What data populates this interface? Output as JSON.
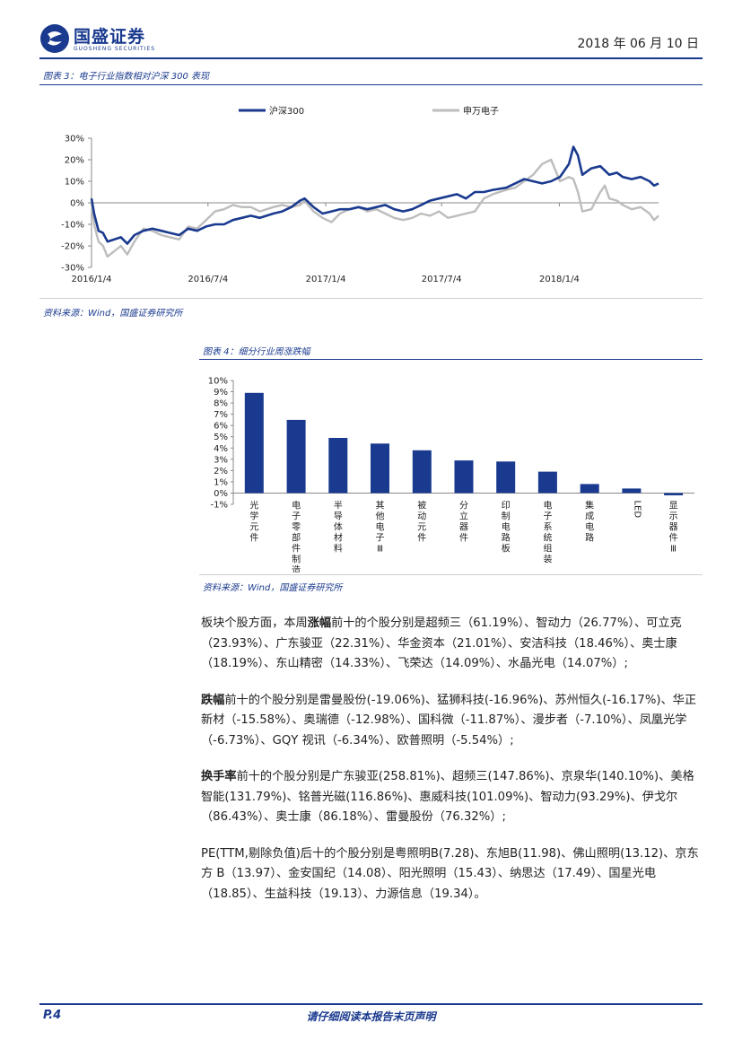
{
  "header": {
    "logo_text": "国盛证券",
    "logo_sub": "GUOSHENG SECURITIES",
    "date": "2018 年 06 月 10 日"
  },
  "figure3": {
    "caption": "图表 3：电子行业指数相对沪深 300 表现",
    "source": "资料来源：Wind，国盛证券研究所"
  },
  "figure4": {
    "caption": "图表 4：细分行业周涨跌幅",
    "source": "资料来源：Wind，国盛证券研究所"
  },
  "chart_data": [
    {
      "type": "line",
      "legend_position": "top",
      "ylim": [
        -0.3,
        0.3
      ],
      "yticks": [
        0.3,
        0.2,
        0.1,
        0.0,
        -0.1,
        -0.2,
        -0.3
      ],
      "ytick_labels": [
        "30%",
        "20%",
        "10%",
        "0%",
        "-10%",
        "-20%",
        "-30%"
      ],
      "xticks": [
        "2016/1/4",
        "2016/7/4",
        "2017/1/4",
        "2017/7/4",
        "2018/1/4"
      ],
      "xlim": [
        "2016-01-04",
        "2018-06-08"
      ],
      "series": [
        {
          "name": "沪深300",
          "color": "#1a3a8f",
          "points": [
            [
              "2016-01-04",
              0.02
            ],
            [
              "2016-01-08",
              -0.05
            ],
            [
              "2016-01-15",
              -0.13
            ],
            [
              "2016-01-22",
              -0.14
            ],
            [
              "2016-01-29",
              -0.18
            ],
            [
              "2016-02-19",
              -0.16
            ],
            [
              "2016-02-29",
              -0.19
            ],
            [
              "2016-03-11",
              -0.15
            ],
            [
              "2016-03-25",
              -0.13
            ],
            [
              "2016-04-08",
              -0.12
            ],
            [
              "2016-04-22",
              -0.13
            ],
            [
              "2016-05-06",
              -0.14
            ],
            [
              "2016-05-20",
              -0.15
            ],
            [
              "2016-06-03",
              -0.12
            ],
            [
              "2016-06-17",
              -0.13
            ],
            [
              "2016-07-01",
              -0.11
            ],
            [
              "2016-07-15",
              -0.1
            ],
            [
              "2016-07-29",
              -0.1
            ],
            [
              "2016-08-12",
              -0.08
            ],
            [
              "2016-08-26",
              -0.07
            ],
            [
              "2016-09-09",
              -0.06
            ],
            [
              "2016-09-23",
              -0.07
            ],
            [
              "2016-10-14",
              -0.05
            ],
            [
              "2016-10-28",
              -0.04
            ],
            [
              "2016-11-11",
              -0.02
            ],
            [
              "2016-11-25",
              0.01
            ],
            [
              "2016-12-02",
              0.02
            ],
            [
              "2016-12-16",
              -0.02
            ],
            [
              "2016-12-30",
              -0.05
            ],
            [
              "2017-01-13",
              -0.04
            ],
            [
              "2017-01-26",
              -0.03
            ],
            [
              "2017-02-10",
              -0.03
            ],
            [
              "2017-02-24",
              -0.02
            ],
            [
              "2017-03-10",
              -0.03
            ],
            [
              "2017-03-24",
              -0.02
            ],
            [
              "2017-04-07",
              -0.01
            ],
            [
              "2017-04-21",
              -0.03
            ],
            [
              "2017-05-05",
              -0.04
            ],
            [
              "2017-05-19",
              -0.03
            ],
            [
              "2017-06-02",
              -0.01
            ],
            [
              "2017-06-16",
              0.01
            ],
            [
              "2017-06-30",
              0.02
            ],
            [
              "2017-07-14",
              0.03
            ],
            [
              "2017-07-28",
              0.04
            ],
            [
              "2017-08-11",
              0.02
            ],
            [
              "2017-08-25",
              0.05
            ],
            [
              "2017-09-08",
              0.05
            ],
            [
              "2017-09-22",
              0.06
            ],
            [
              "2017-10-13",
              0.07
            ],
            [
              "2017-10-27",
              0.09
            ],
            [
              "2017-11-10",
              0.11
            ],
            [
              "2017-11-24",
              0.1
            ],
            [
              "2017-12-08",
              0.09
            ],
            [
              "2017-12-22",
              0.1
            ],
            [
              "2018-01-05",
              0.12
            ],
            [
              "2018-01-19",
              0.18
            ],
            [
              "2018-01-26",
              0.26
            ],
            [
              "2018-02-02",
              0.22
            ],
            [
              "2018-02-09",
              0.13
            ],
            [
              "2018-02-23",
              0.16
            ],
            [
              "2018-03-09",
              0.17
            ],
            [
              "2018-03-16",
              0.15
            ],
            [
              "2018-03-23",
              0.13
            ],
            [
              "2018-04-04",
              0.14
            ],
            [
              "2018-04-13",
              0.12
            ],
            [
              "2018-04-27",
              0.11
            ],
            [
              "2018-05-11",
              0.12
            ],
            [
              "2018-05-25",
              0.1
            ],
            [
              "2018-06-01",
              0.08
            ],
            [
              "2018-06-08",
              0.09
            ]
          ]
        },
        {
          "name": "申万电子",
          "color": "#bdbdbd",
          "points": [
            [
              "2016-01-04",
              0.0
            ],
            [
              "2016-01-08",
              -0.1
            ],
            [
              "2016-01-15",
              -0.18
            ],
            [
              "2016-01-22",
              -0.2
            ],
            [
              "2016-01-29",
              -0.25
            ],
            [
              "2016-02-19",
              -0.2
            ],
            [
              "2016-02-29",
              -0.24
            ],
            [
              "2016-03-11",
              -0.18
            ],
            [
              "2016-03-25",
              -0.12
            ],
            [
              "2016-04-08",
              -0.13
            ],
            [
              "2016-04-22",
              -0.15
            ],
            [
              "2016-05-06",
              -0.16
            ],
            [
              "2016-05-20",
              -0.17
            ],
            [
              "2016-06-03",
              -0.11
            ],
            [
              "2016-06-17",
              -0.12
            ],
            [
              "2016-07-01",
              -0.08
            ],
            [
              "2016-07-15",
              -0.04
            ],
            [
              "2016-07-29",
              -0.03
            ],
            [
              "2016-08-12",
              -0.01
            ],
            [
              "2016-08-26",
              -0.02
            ],
            [
              "2016-09-09",
              -0.02
            ],
            [
              "2016-09-23",
              -0.04
            ],
            [
              "2016-10-14",
              -0.02
            ],
            [
              "2016-10-28",
              -0.01
            ],
            [
              "2016-11-11",
              -0.02
            ],
            [
              "2016-11-25",
              -0.01
            ],
            [
              "2016-12-02",
              0.01
            ],
            [
              "2016-12-16",
              -0.04
            ],
            [
              "2016-12-30",
              -0.07
            ],
            [
              "2017-01-13",
              -0.09
            ],
            [
              "2017-01-26",
              -0.05
            ],
            [
              "2017-02-10",
              -0.03
            ],
            [
              "2017-02-24",
              -0.02
            ],
            [
              "2017-03-10",
              -0.04
            ],
            [
              "2017-03-24",
              -0.03
            ],
            [
              "2017-04-07",
              -0.05
            ],
            [
              "2017-04-21",
              -0.07
            ],
            [
              "2017-05-05",
              -0.08
            ],
            [
              "2017-05-19",
              -0.07
            ],
            [
              "2017-06-02",
              -0.05
            ],
            [
              "2017-06-16",
              -0.06
            ],
            [
              "2017-06-30",
              -0.04
            ],
            [
              "2017-07-14",
              -0.07
            ],
            [
              "2017-07-28",
              -0.06
            ],
            [
              "2017-08-11",
              -0.05
            ],
            [
              "2017-08-25",
              -0.04
            ],
            [
              "2017-09-08",
              0.02
            ],
            [
              "2017-09-22",
              0.04
            ],
            [
              "2017-10-13",
              0.06
            ],
            [
              "2017-10-27",
              0.07
            ],
            [
              "2017-11-10",
              0.1
            ],
            [
              "2017-11-24",
              0.13
            ],
            [
              "2017-12-08",
              0.18
            ],
            [
              "2017-12-22",
              0.2
            ],
            [
              "2018-01-05",
              0.1
            ],
            [
              "2018-01-19",
              0.12
            ],
            [
              "2018-01-26",
              0.11
            ],
            [
              "2018-02-02",
              0.05
            ],
            [
              "2018-02-09",
              -0.04
            ],
            [
              "2018-02-23",
              -0.03
            ],
            [
              "2018-03-09",
              0.05
            ],
            [
              "2018-03-16",
              0.08
            ],
            [
              "2018-03-23",
              0.02
            ],
            [
              "2018-04-04",
              0.01
            ],
            [
              "2018-04-13",
              -0.01
            ],
            [
              "2018-04-27",
              -0.03
            ],
            [
              "2018-05-11",
              -0.02
            ],
            [
              "2018-05-25",
              -0.05
            ],
            [
              "2018-06-01",
              -0.08
            ],
            [
              "2018-06-08",
              -0.06
            ]
          ]
        }
      ]
    },
    {
      "type": "bar",
      "ylim": [
        -0.01,
        0.1
      ],
      "yticks": [
        0.1,
        0.09,
        0.08,
        0.07,
        0.06,
        0.05,
        0.04,
        0.03,
        0.02,
        0.01,
        0.0,
        -0.01
      ],
      "ytick_labels": [
        "10%",
        "9%",
        "8%",
        "7%",
        "6%",
        "5%",
        "4%",
        "3%",
        "2%",
        "1%",
        "0%",
        "-1%"
      ],
      "bar_color": "#1a3a8f",
      "categories": [
        "光学元件",
        "电子零部件制造",
        "半导体材料",
        "其他电子Ⅲ",
        "被动元件",
        "分立器件",
        "印制电路板",
        "电子系统组装",
        "集成电路",
        "LED",
        "显示器件Ⅲ"
      ],
      "values": [
        0.089,
        0.065,
        0.049,
        0.044,
        0.038,
        0.029,
        0.028,
        0.019,
        0.008,
        0.004,
        -0.002
      ]
    }
  ],
  "body": {
    "para1": {
      "pre": "板块个股方面，本周",
      "bold": "涨幅",
      "post": "前十的个股分别是超频三（61.19%）、智动力（26.77%）、可立克（23.93%）、广东骏亚（22.31%）、华金资本（21.01%）、安洁科技（18.46%）、奥士康（18.19%）、东山精密（14.33%）、飞荣达（14.09%）、水晶光电（14.07%）;"
    },
    "para2": {
      "bold": "跌幅",
      "post": "前十的个股分别是雷曼股份(-19.06%)、猛狮科技(-16.96%)、苏州恒久(-16.17%)、华正新材（-15.58%）、奥瑞德（-12.98%）、国科微（-11.87%）、漫步者（-7.10%）、凤凰光学（-6.73%）、GQY 视讯（-6.34%）、欧普照明（-5.54%）;"
    },
    "para3": {
      "bold": "换手率",
      "post": "前十的个股分别是广东骏亚(258.81%)、超频三(147.86%)、京泉华(140.10%)、美格智能(131.79%)、铭普光磁(116.86%)、惠威科技(101.09%)、智动力(93.29%)、伊戈尔（86.43%）、奥士康（86.18%）、雷曼股份（76.32%）;"
    },
    "para4": {
      "text": "PE(TTM,剔除负值)后十的个股分别是粤照明B(7.28)、东旭B(11.98)、佛山照明(13.12)、京东方 B（13.97）、金安国纪（14.08）、阳光照明（15.43）、纳思达（17.49）、国星光电（18.85）、生益科技（19.13）、力源信息（19.34）。"
    }
  },
  "footer": {
    "page": "P.4",
    "disclaimer": "请仔细阅读本报告末页声明"
  }
}
